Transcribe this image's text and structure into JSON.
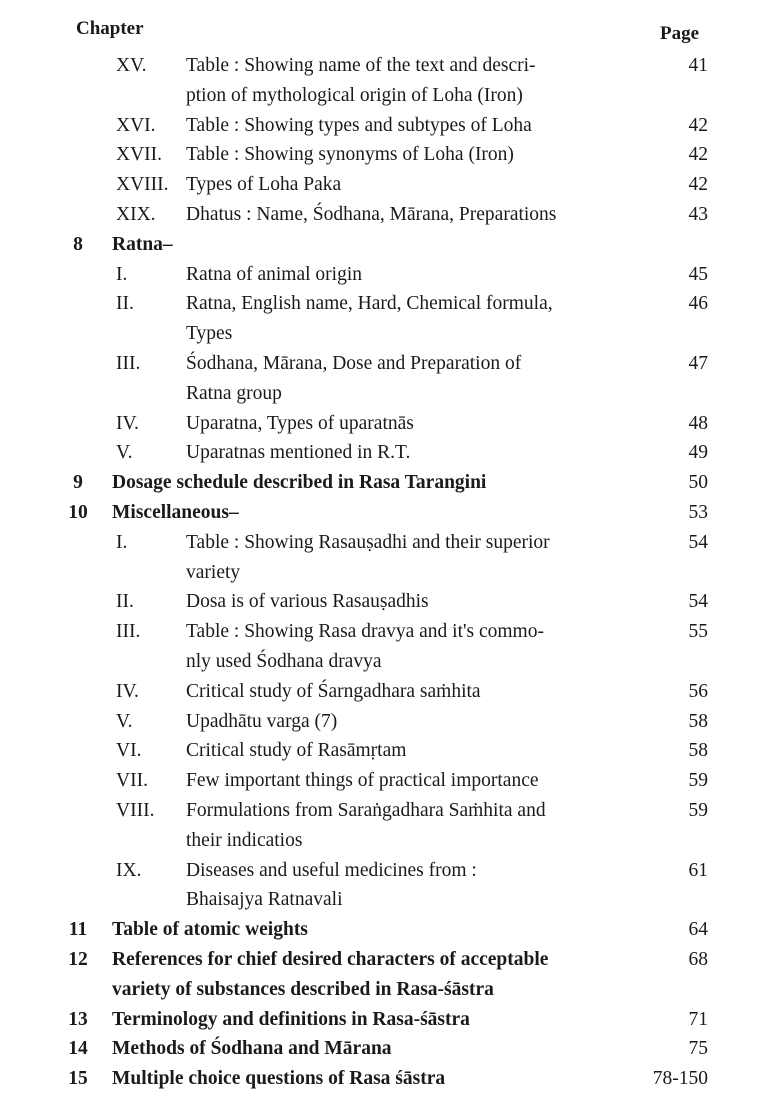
{
  "header": {
    "chapter_label": "Chapter",
    "page_label": "Page"
  },
  "entries": [
    {
      "type": "sub",
      "number": "XV.",
      "lines": [
        "Table : Showing name of the text and descri-",
        "ption of mythological origin of Loha (Iron)"
      ],
      "page": "41"
    },
    {
      "type": "sub",
      "number": "XVI.",
      "lines": [
        "Table : Showing types and subtypes of Loha"
      ],
      "page": "42"
    },
    {
      "type": "sub",
      "number": "XVII.",
      "lines": [
        "Table : Showing synonyms of Loha (Iron)"
      ],
      "page": "42"
    },
    {
      "type": "sub",
      "number": "XVIII.",
      "lines": [
        "Types of Loha Paka"
      ],
      "page": "42"
    },
    {
      "type": "sub",
      "number": "XIX.",
      "lines": [
        "Dhatus : Name, Śodhana, Mārana, Preparations"
      ],
      "page": "43"
    },
    {
      "type": "main",
      "number": "8",
      "lines": [
        "Ratna–"
      ],
      "page": ""
    },
    {
      "type": "sub",
      "number": "I.",
      "lines": [
        "Ratna of animal origin"
      ],
      "page": "45"
    },
    {
      "type": "sub",
      "number": "II.",
      "lines": [
        "Ratna, English name, Hard, Chemical formula,",
        "Types"
      ],
      "page": "46"
    },
    {
      "type": "sub",
      "number": "III.",
      "lines": [
        "Śodhana, Mārana, Dose and Preparation of",
        "Ratna group"
      ],
      "page": "47"
    },
    {
      "type": "sub",
      "number": "IV.",
      "lines": [
        "Uparatna, Types of uparatnās"
      ],
      "page": "48"
    },
    {
      "type": "sub",
      "number": "V.",
      "lines": [
        "Uparatnas mentioned in R.T."
      ],
      "page": "49"
    },
    {
      "type": "main",
      "number": "9",
      "lines": [
        "Dosage schedule described in Rasa Tarangini"
      ],
      "page": "50"
    },
    {
      "type": "main",
      "number": "10",
      "lines": [
        "Miscellaneous–"
      ],
      "page": "53"
    },
    {
      "type": "sub",
      "number": "I.",
      "lines": [
        "Table : Showing Rasauṣadhi and their superior",
        "variety"
      ],
      "page": "54"
    },
    {
      "type": "sub",
      "number": "II.",
      "lines": [
        "Dosa is of various Rasauṣadhis"
      ],
      "page": "54"
    },
    {
      "type": "sub",
      "number": "III.",
      "lines": [
        "Table : Showing Rasa dravya and it's commo-",
        "nly used Śodhana dravya"
      ],
      "page": "55"
    },
    {
      "type": "sub",
      "number": "IV.",
      "lines": [
        "Critical study of Śarngadhara saṁhita"
      ],
      "page": "56"
    },
    {
      "type": "sub",
      "number": "V.",
      "lines": [
        "Upadhātu varga (7)"
      ],
      "page": "58"
    },
    {
      "type": "sub",
      "number": "VI.",
      "lines": [
        "Critical study of Rasāmṛtam"
      ],
      "page": "58"
    },
    {
      "type": "sub",
      "number": "VII.",
      "lines": [
        "Few important things of practical importance"
      ],
      "page": "59"
    },
    {
      "type": "sub",
      "number": "VIII.",
      "lines": [
        "Formulations from Saraṅgadhara Saṁhita and",
        "their indicatios"
      ],
      "page": "59"
    },
    {
      "type": "sub",
      "number": "IX.",
      "lines": [
        "Diseases and useful medicines from :",
        "Bhaisajya Ratnavali"
      ],
      "page": "61"
    },
    {
      "type": "main",
      "number": "11",
      "lines": [
        "Table of atomic weights"
      ],
      "page": "64"
    },
    {
      "type": "main",
      "number": "12",
      "lines": [
        "References for chief desired characters of acceptable",
        "variety of substances described in Rasa-śāstra"
      ],
      "page": "68"
    },
    {
      "type": "main",
      "number": "13",
      "lines": [
        "Terminology and definitions in Rasa-śāstra"
      ],
      "page": "71"
    },
    {
      "type": "main",
      "number": "14",
      "lines": [
        "Methods of Śodhana and Mārana"
      ],
      "page": "75"
    },
    {
      "type": "main",
      "number": "15",
      "lines": [
        "Multiple choice questions of Rasa śāstra"
      ],
      "page": "78-150"
    }
  ]
}
